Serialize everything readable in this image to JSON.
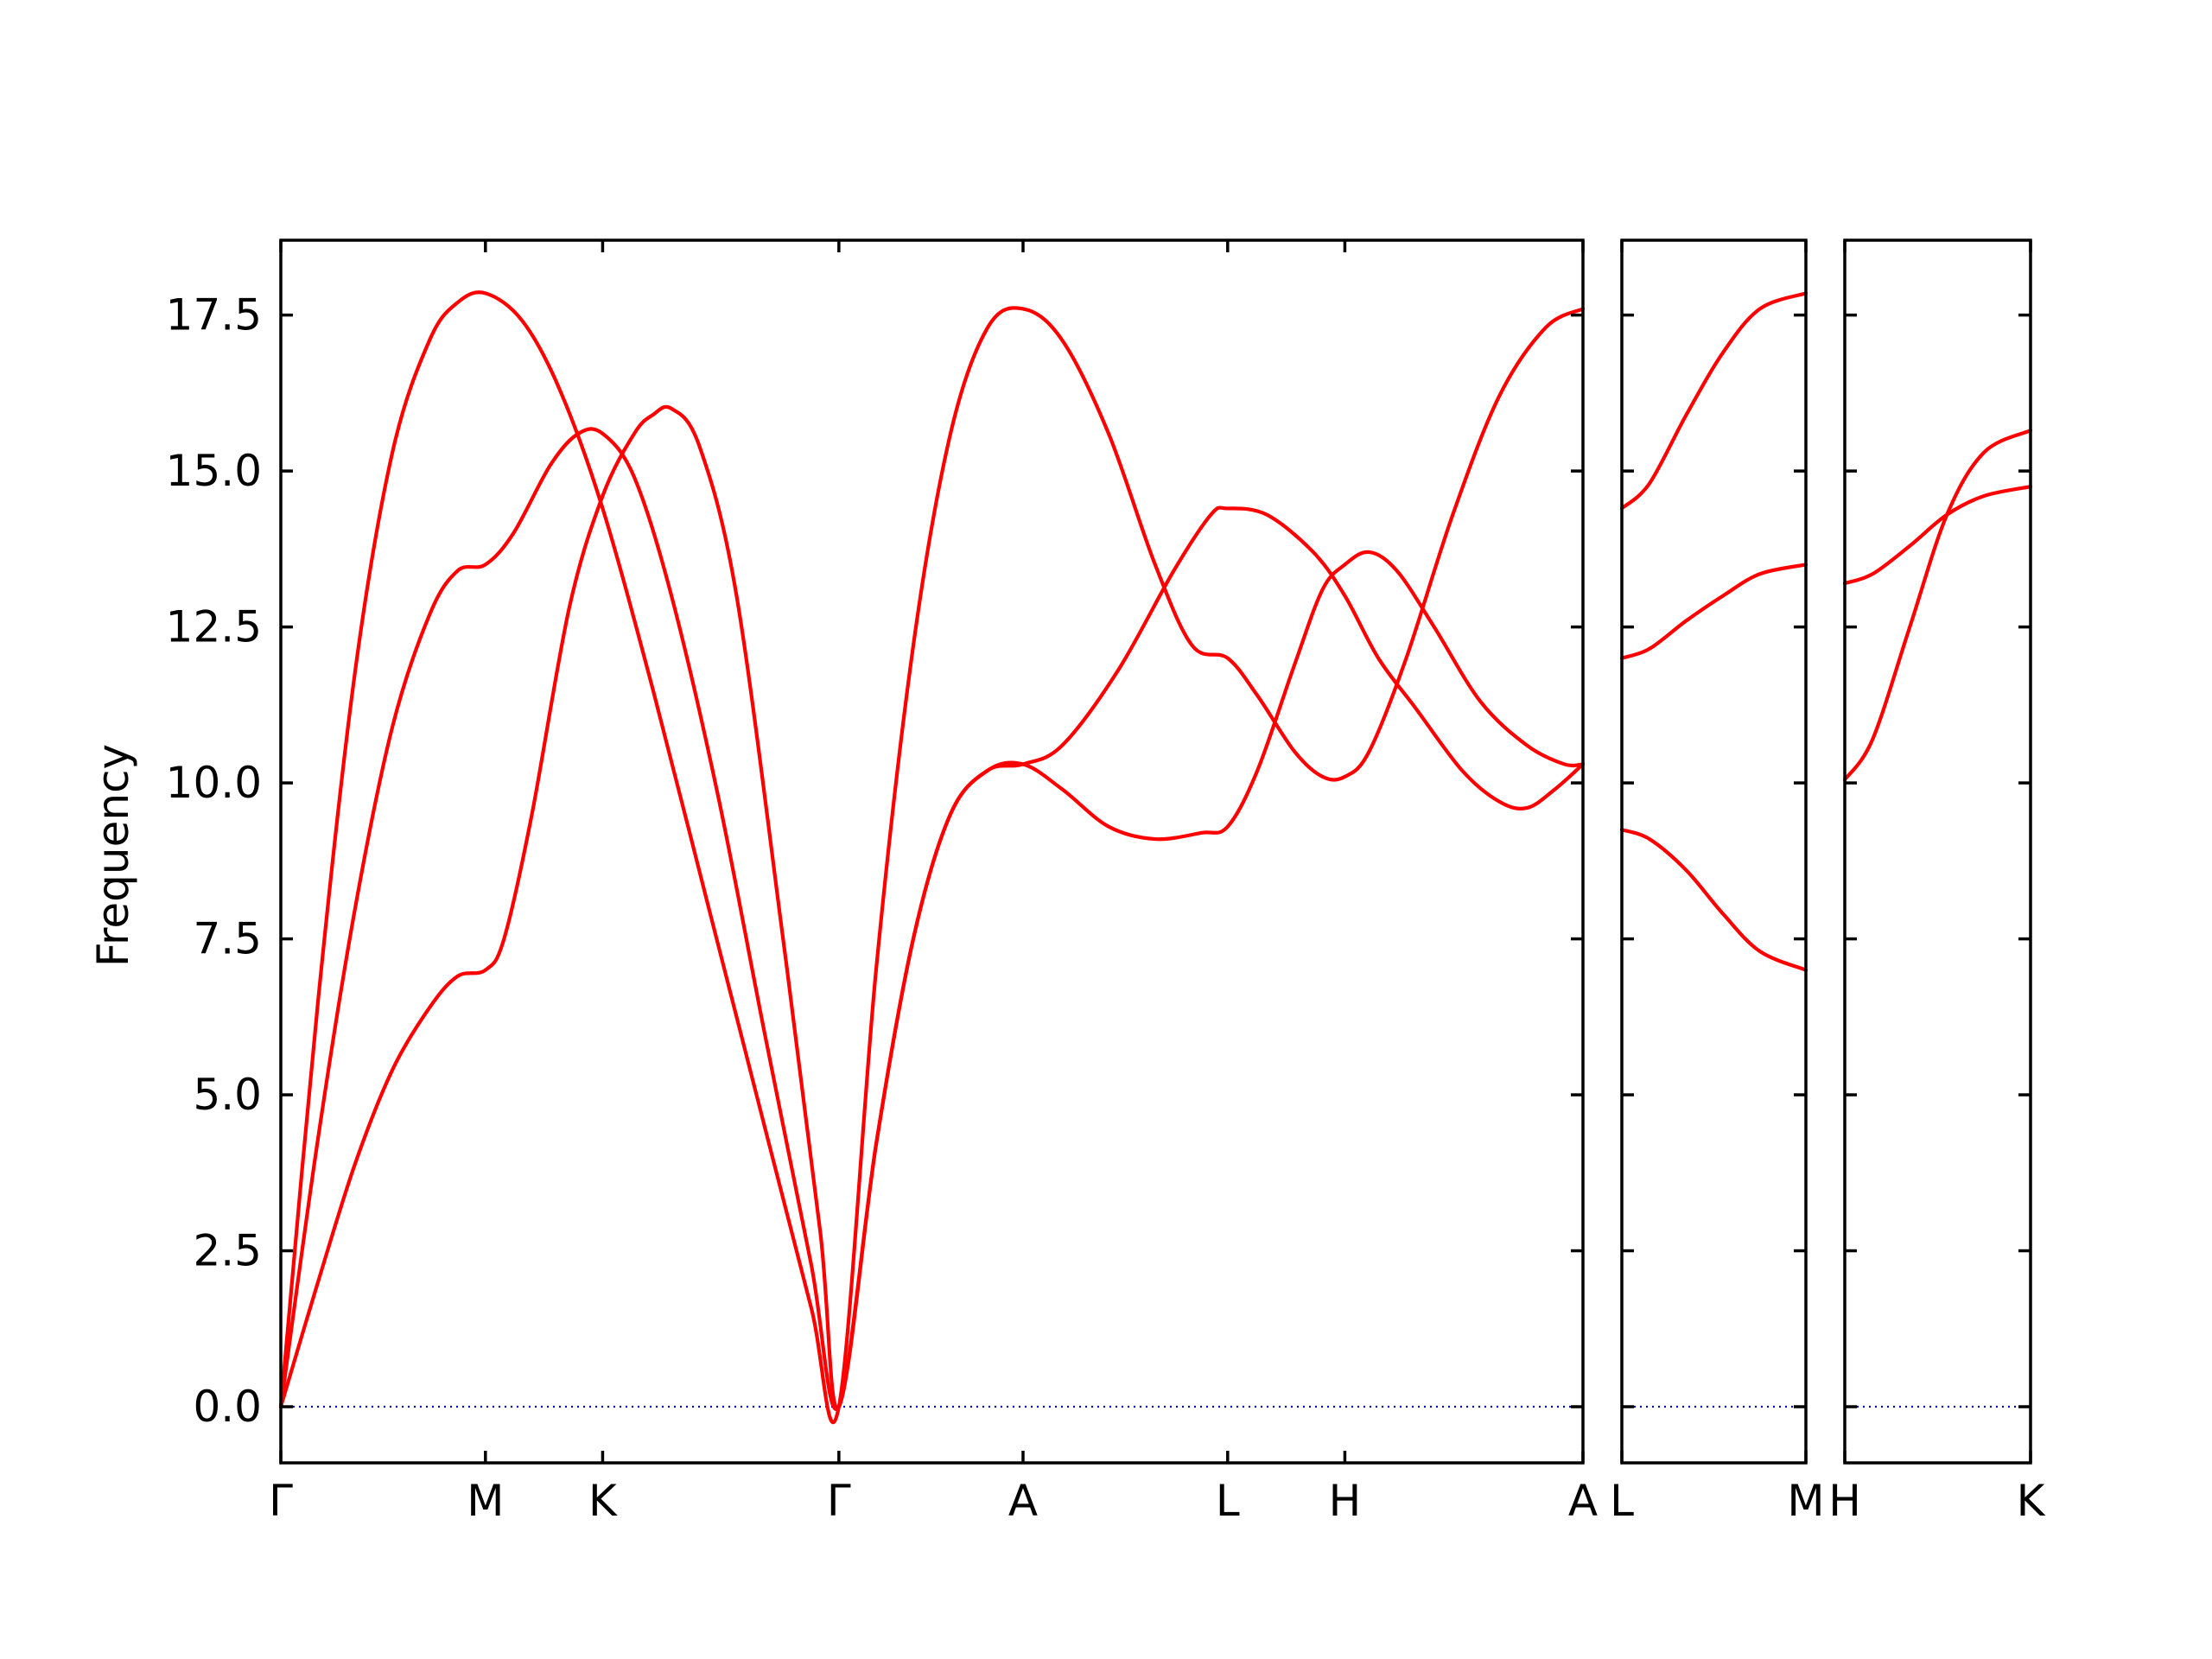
{
  "chart_data": {
    "type": "line",
    "title": "",
    "ylabel": "Frequency",
    "ylim": [
      -0.9,
      18.7
    ],
    "yticks": [
      "0.0",
      "2.5",
      "5.0",
      "7.5",
      "10.0",
      "12.5",
      "15.0",
      "17.5"
    ],
    "grid": false,
    "colors": {
      "bands": "#ff0000",
      "zero_line": "#0000cc",
      "axes": "#000000"
    },
    "panels": [
      {
        "name": "Γ-M-K-Γ-A-L-H-A",
        "x_range": [
          0,
          7.0
        ],
        "xticks": [
          {
            "x": 0.0,
            "label": "Γ"
          },
          {
            "x": 1.1,
            "label": "M"
          },
          {
            "x": 1.73,
            "label": "K"
          },
          {
            "x": 3.0,
            "label": "Γ"
          },
          {
            "x": 3.99,
            "label": "A"
          },
          {
            "x": 5.09,
            "label": "L"
          },
          {
            "x": 5.72,
            "label": "H"
          },
          {
            "x": 7.0,
            "label": "A"
          }
        ],
        "series": [
          {
            "points": [
              [
                0,
                0
              ],
              [
                0.2,
                6.5
              ],
              [
                0.4,
                11.8
              ],
              [
                0.6,
                15.3
              ],
              [
                0.8,
                17.1
              ],
              [
                0.95,
                17.7
              ],
              [
                1.1,
                17.85
              ],
              [
                1.3,
                17.4
              ],
              [
                1.5,
                16.3
              ],
              [
                1.73,
                14.4
              ],
              [
                2.0,
                11.5
              ],
              [
                2.3,
                8.0
              ],
              [
                2.6,
                4.5
              ],
              [
                2.85,
                1.6
              ],
              [
                3.0,
                0
              ],
              [
                3.2,
                7.0
              ],
              [
                3.4,
                12.2
              ],
              [
                3.6,
                15.6
              ],
              [
                3.8,
                17.3
              ],
              [
                3.99,
                17.6
              ],
              [
                4.2,
                17.1
              ],
              [
                4.45,
                15.6
              ],
              [
                4.7,
                13.5
              ],
              [
                4.9,
                12.2
              ],
              [
                5.09,
                12.0
              ],
              [
                5.25,
                11.4
              ],
              [
                5.45,
                10.5
              ],
              [
                5.6,
                10.1
              ],
              [
                5.72,
                10.1
              ],
              [
                5.85,
                10.5
              ],
              [
                6.05,
                12.0
              ],
              [
                6.3,
                14.3
              ],
              [
                6.55,
                16.2
              ],
              [
                6.8,
                17.3
              ],
              [
                7.0,
                17.6
              ]
            ]
          },
          {
            "points": [
              [
                0,
                0
              ],
              [
                0.2,
                4.3
              ],
              [
                0.4,
                8.0
              ],
              [
                0.6,
                10.9
              ],
              [
                0.8,
                12.7
              ],
              [
                0.95,
                13.4
              ],
              [
                1.1,
                13.5
              ],
              [
                1.25,
                14.0
              ],
              [
                1.45,
                15.1
              ],
              [
                1.6,
                15.6
              ],
              [
                1.73,
                15.6
              ],
              [
                1.9,
                14.9
              ],
              [
                2.1,
                13.0
              ],
              [
                2.35,
                9.8
              ],
              [
                2.6,
                6.0
              ],
              [
                2.85,
                2.3
              ],
              [
                3.0,
                0
              ],
              [
                3.2,
                4.2
              ],
              [
                3.4,
                7.5
              ],
              [
                3.6,
                9.5
              ],
              [
                3.8,
                10.2
              ],
              [
                3.99,
                10.3
              ],
              [
                4.2,
                10.6
              ],
              [
                4.5,
                11.8
              ],
              [
                4.8,
                13.4
              ],
              [
                5.0,
                14.3
              ],
              [
                5.09,
                14.4
              ],
              [
                5.3,
                14.3
              ],
              [
                5.55,
                13.7
              ],
              [
                5.72,
                13.0
              ],
              [
                5.9,
                12.0
              ],
              [
                6.1,
                11.2
              ],
              [
                6.35,
                10.2
              ],
              [
                6.55,
                9.7
              ],
              [
                6.7,
                9.6
              ],
              [
                6.85,
                9.9
              ],
              [
                7.0,
                10.3
              ]
            ]
          },
          {
            "points": [
              [
                0,
                0
              ],
              [
                0.2,
                2.0
              ],
              [
                0.4,
                3.9
              ],
              [
                0.6,
                5.4
              ],
              [
                0.8,
                6.4
              ],
              [
                0.95,
                6.9
              ],
              [
                1.1,
                7.0
              ],
              [
                1.2,
                7.5
              ],
              [
                1.35,
                9.5
              ],
              [
                1.55,
                12.8
              ],
              [
                1.73,
                14.6
              ],
              [
                1.9,
                15.6
              ],
              [
                2.0,
                15.9
              ],
              [
                2.1,
                16.0
              ],
              [
                2.25,
                15.4
              ],
              [
                2.45,
                13.0
              ],
              [
                2.7,
                7.5
              ],
              [
                2.9,
                2.8
              ],
              [
                3.0,
                0
              ],
              [
                3.2,
                4.2
              ],
              [
                3.4,
                7.5
              ],
              [
                3.6,
                9.5
              ],
              [
                3.8,
                10.2
              ],
              [
                3.99,
                10.3
              ],
              [
                4.2,
                9.9
              ],
              [
                4.45,
                9.3
              ],
              [
                4.7,
                9.1
              ],
              [
                4.95,
                9.2
              ],
              [
                5.09,
                9.3
              ],
              [
                5.25,
                10.2
              ],
              [
                5.45,
                11.9
              ],
              [
                5.6,
                13.1
              ],
              [
                5.72,
                13.5
              ],
              [
                5.85,
                13.7
              ],
              [
                6.0,
                13.4
              ],
              [
                6.2,
                12.5
              ],
              [
                6.45,
                11.3
              ],
              [
                6.7,
                10.6
              ],
              [
                6.9,
                10.3
              ],
              [
                7.0,
                10.3
              ]
            ]
          }
        ]
      },
      {
        "name": "L-M",
        "x_range": [
          0,
          1.0
        ],
        "xticks": [
          {
            "x": 0.0,
            "label": "L"
          },
          {
            "x": 1.0,
            "label": "M"
          }
        ],
        "series": [
          {
            "points": [
              [
                0,
                14.4
              ],
              [
                0.15,
                14.8
              ],
              [
                0.35,
                15.9
              ],
              [
                0.55,
                16.9
              ],
              [
                0.75,
                17.6
              ],
              [
                1.0,
                17.85
              ]
            ]
          },
          {
            "points": [
              [
                0,
                12.0
              ],
              [
                0.15,
                12.15
              ],
              [
                0.35,
                12.6
              ],
              [
                0.55,
                13.0
              ],
              [
                0.75,
                13.35
              ],
              [
                1.0,
                13.5
              ]
            ]
          },
          {
            "points": [
              [
                0,
                9.25
              ],
              [
                0.15,
                9.1
              ],
              [
                0.35,
                8.6
              ],
              [
                0.55,
                7.9
              ],
              [
                0.75,
                7.3
              ],
              [
                1.0,
                7.0
              ]
            ]
          }
        ]
      },
      {
        "name": "H-K",
        "x_range": [
          0,
          1.0
        ],
        "xticks": [
          {
            "x": 0.0,
            "label": "H"
          },
          {
            "x": 1.0,
            "label": "K"
          }
        ],
        "series": [
          {
            "points": [
              [
                0,
                10.05
              ],
              [
                0.15,
                10.7
              ],
              [
                0.35,
                12.5
              ],
              [
                0.55,
                14.3
              ],
              [
                0.75,
                15.3
              ],
              [
                1.0,
                15.65
              ]
            ]
          },
          {
            "points": [
              [
                0,
                13.2
              ],
              [
                0.15,
                13.35
              ],
              [
                0.35,
                13.8
              ],
              [
                0.55,
                14.3
              ],
              [
                0.75,
                14.6
              ],
              [
                1.0,
                14.75
              ]
            ]
          }
        ]
      }
    ]
  }
}
